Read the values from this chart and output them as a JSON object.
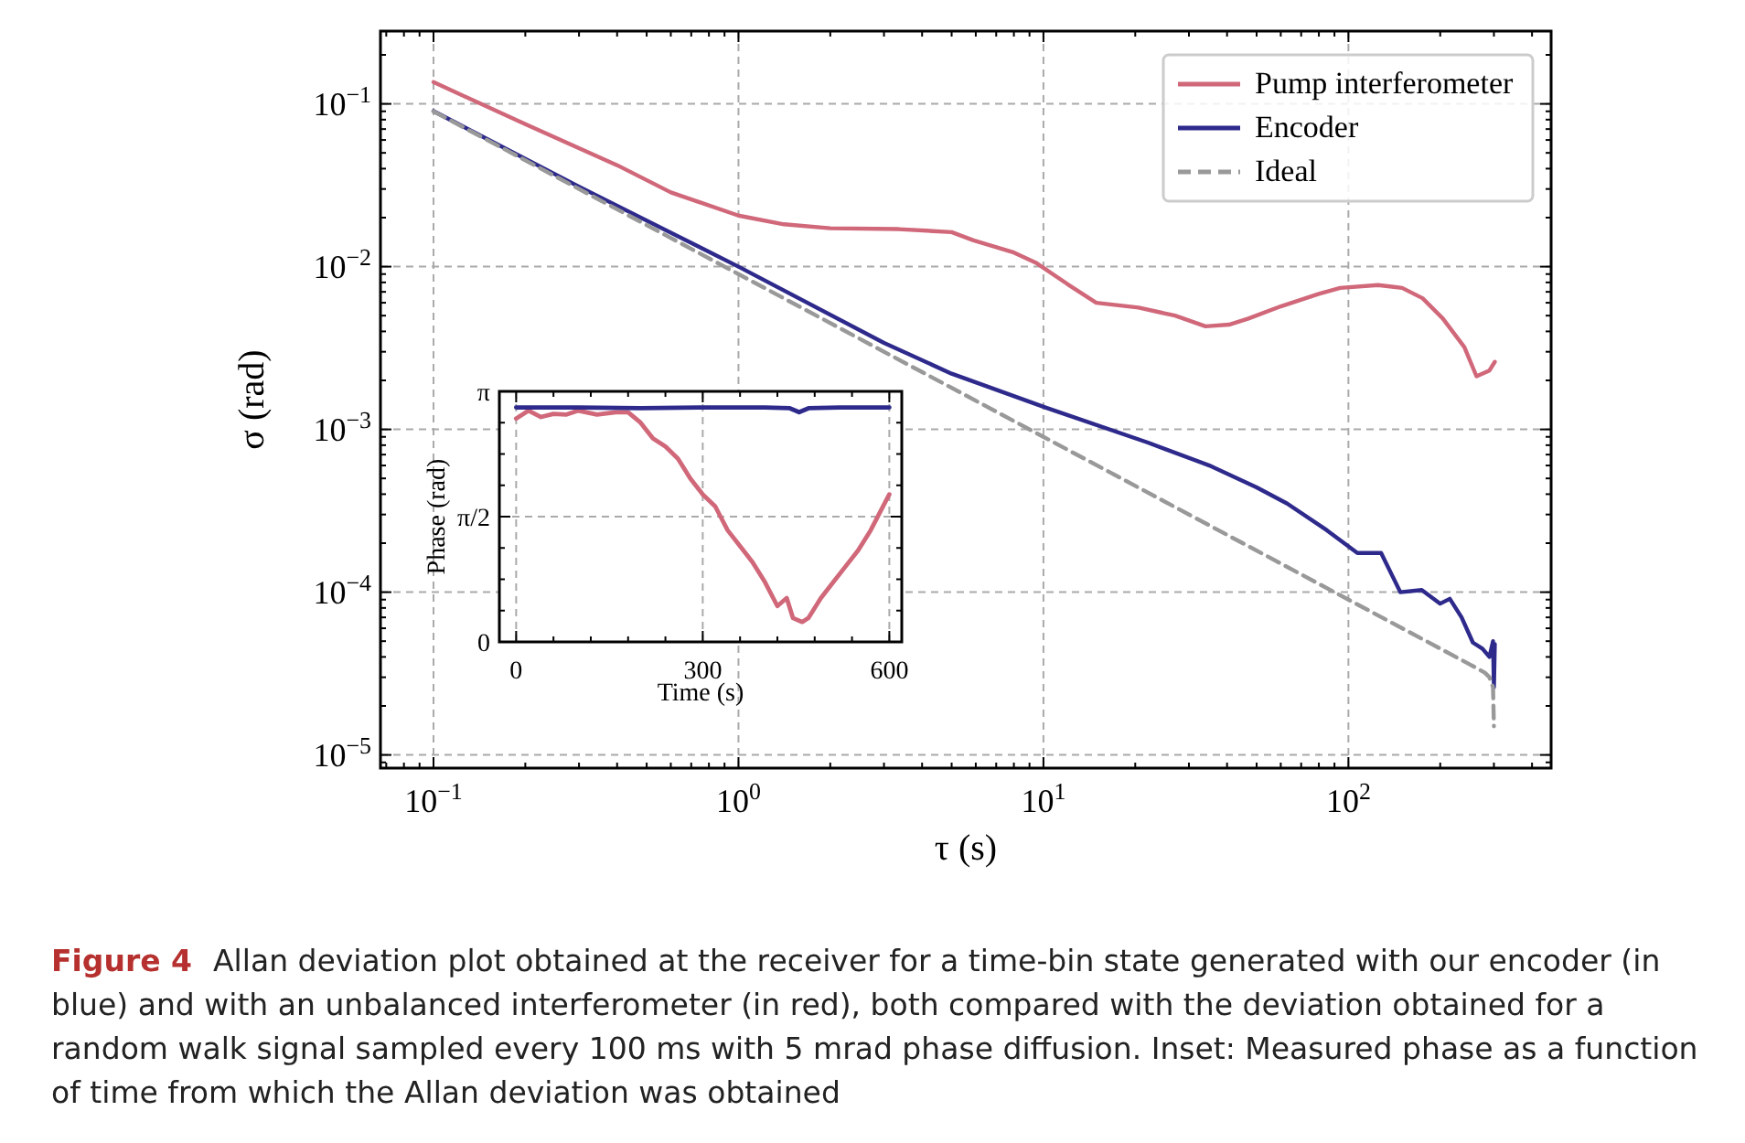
{
  "chart_data": [
    {
      "type": "line",
      "xlabel": "τ (s)",
      "ylabel": "σ (rad)",
      "log": "xy",
      "grid": true,
      "legend": "top right",
      "xlim": [
        0.067,
        462
      ],
      "ylim": [
        8.3e-06,
        0.28
      ],
      "xticks": [
        {
          "value": 0.1,
          "label": "10$^{−1}$"
        },
        {
          "value": 1,
          "label": "10$^{0}$"
        },
        {
          "value": 10,
          "label": "10$^{1}$"
        },
        {
          "value": 100,
          "label": "10$^{2}$"
        },
        {
          "value": 0.07,
          "label": null
        },
        {
          "value": 0.08,
          "label": null
        },
        {
          "value": 0.09,
          "label": null
        },
        {
          "value": 0.2,
          "label": null
        },
        {
          "value": 0.3,
          "label": null
        },
        {
          "value": 0.4,
          "label": null
        },
        {
          "value": 0.5,
          "label": null
        },
        {
          "value": 0.6,
          "label": null
        },
        {
          "value": 0.7,
          "label": null
        },
        {
          "value": 0.8,
          "label": null
        },
        {
          "value": 0.9,
          "label": null
        },
        {
          "value": 2,
          "label": null
        },
        {
          "value": 3,
          "label": null
        },
        {
          "value": 4,
          "label": null
        },
        {
          "value": 5,
          "label": null
        },
        {
          "value": 6,
          "label": null
        },
        {
          "value": 7,
          "label": null
        },
        {
          "value": 8,
          "label": null
        },
        {
          "value": 9,
          "label": null
        },
        {
          "value": 20,
          "label": null
        },
        {
          "value": 30,
          "label": null
        },
        {
          "value": 40,
          "label": null
        },
        {
          "value": 50,
          "label": null
        },
        {
          "value": 60,
          "label": null
        },
        {
          "value": 70,
          "label": null
        },
        {
          "value": 80,
          "label": null
        },
        {
          "value": 90,
          "label": null
        },
        {
          "value": 200,
          "label": null
        },
        {
          "value": 300,
          "label": null
        },
        {
          "value": 400,
          "label": null
        }
      ],
      "yticks": [
        {
          "value": 1e-05,
          "label": "10$^{−5}$"
        },
        {
          "value": 0.0001,
          "label": "10$^{−4}$"
        },
        {
          "value": 0.001,
          "label": "10$^{−3}$"
        },
        {
          "value": 0.01,
          "label": "10$^{−2}$"
        },
        {
          "value": 0.1,
          "label": "10$^{−1}$"
        },
        {
          "value": 9e-06,
          "label": null
        },
        {
          "value": 2e-05,
          "label": null
        },
        {
          "value": 3e-05,
          "label": null
        },
        {
          "value": 4e-05,
          "label": null
        },
        {
          "value": 5e-05,
          "label": null
        },
        {
          "value": 6e-05,
          "label": null
        },
        {
          "value": 7e-05,
          "label": null
        },
        {
          "value": 8e-05,
          "label": null
        },
        {
          "value": 9e-05,
          "label": null
        },
        {
          "value": 0.0002,
          "label": null
        },
        {
          "value": 0.0003,
          "label": null
        },
        {
          "value": 0.0004,
          "label": null
        },
        {
          "value": 0.0005,
          "label": null
        },
        {
          "value": 0.0006,
          "label": null
        },
        {
          "value": 0.0007,
          "label": null
        },
        {
          "value": 0.0008,
          "label": null
        },
        {
          "value": 0.0009,
          "label": null
        },
        {
          "value": 0.002,
          "label": null
        },
        {
          "value": 0.003,
          "label": null
        },
        {
          "value": 0.004,
          "label": null
        },
        {
          "value": 0.005,
          "label": null
        },
        {
          "value": 0.006,
          "label": null
        },
        {
          "value": 0.007,
          "label": null
        },
        {
          "value": 0.008,
          "label": null
        },
        {
          "value": 0.009,
          "label": null
        },
        {
          "value": 0.02,
          "label": null
        },
        {
          "value": 0.03,
          "label": null
        },
        {
          "value": 0.04,
          "label": null
        },
        {
          "value": 0.05,
          "label": null
        },
        {
          "value": 0.06,
          "label": null
        },
        {
          "value": 0.07,
          "label": null
        },
        {
          "value": 0.08,
          "label": null
        },
        {
          "value": 0.09,
          "label": null
        },
        {
          "value": 0.2,
          "label": null
        }
      ],
      "annotations": [
        "Figure 4",
        "Allan deviation plot obtained at the receiver for a time-bin state generated with our encoder (in blue) and with an unbalanced interferometer (in red), both compared with the deviation obtained for a random walk signal sampled every 100 ms with 5 mrad phase diffusion. Inset: Measured phase as a function of time from which the Allan deviation was obtained"
      ],
      "series": [
        {
          "name": "Pump interferometer",
          "color": "#d0687a",
          "line_style": "solid",
          "x": [
            0.1,
            0.2,
            0.4,
            0.6,
            1,
            1.41,
            2,
            3.35,
            5,
            5.9,
            8,
            9.5,
            12,
            14.9,
            20.5,
            27,
            34,
            40.6,
            47,
            60,
            80,
            94,
            125,
            150,
            175,
            204,
            240,
            263,
            290,
            302
          ],
          "values": [
            0.136,
            0.075,
            0.042,
            0.0286,
            0.0206,
            0.0182,
            0.0172,
            0.017,
            0.0163,
            0.0145,
            0.0122,
            0.0105,
            0.0078,
            0.006,
            0.0056,
            0.005,
            0.0043,
            0.0044,
            0.0048,
            0.0057,
            0.0068,
            0.0074,
            0.0077,
            0.0074,
            0.0064,
            0.0048,
            0.0032,
            0.00212,
            0.0023,
            0.0026
          ]
        },
        {
          "name": "Encoder",
          "color": "#2e2a8c",
          "line_style": "solid",
          "x": [
            0.1,
            0.3,
            1,
            3,
            5,
            10.2,
            22,
            35,
            50,
            63,
            85,
            107,
            128,
            148,
            174,
            200,
            215,
            235,
            256,
            275,
            290,
            298,
            300,
            302
          ],
          "values": [
            0.0902,
            0.031,
            0.01,
            0.0034,
            0.0022,
            0.00136,
            0.00083,
            0.0006,
            0.00044,
            0.00035,
            0.00024,
            0.000174,
            0.000174,
            0.0001,
            0.000103,
            8.5e-05,
            9.1e-05,
            7e-05,
            4.9e-05,
            4.5e-05,
            4e-05,
            5e-05,
            2.6e-05,
            4.8e-05
          ]
        },
        {
          "name": "Ideal",
          "color": "#999999",
          "line_style": "dashed",
          "x": [
            0.1,
            1,
            10,
            100,
            200,
            250,
            280,
            290,
            298,
            300
          ],
          "values": [
            0.09,
            0.009,
            0.0009,
            9e-05,
            4.5e-05,
            3.6e-05,
            3.2e-05,
            3e-05,
            2.6e-05,
            1.5e-05
          ]
        }
      ]
    },
    {
      "type": "line",
      "xlabel": "Time (s)",
      "ylabel": "Phase (rad)",
      "grid": true,
      "legend": false,
      "xlim": [
        -27,
        620
      ],
      "ylim": [
        0,
        3.1416
      ],
      "xticks": [
        0,
        300,
        600,
        {
          "value": 60,
          "label": null
        },
        {
          "value": 120,
          "label": null
        },
        {
          "value": 180,
          "label": null
        },
        {
          "value": 240,
          "label": null
        },
        {
          "value": 360,
          "label": null
        },
        {
          "value": 420,
          "label": null
        },
        {
          "value": 480,
          "label": null
        },
        {
          "value": 540,
          "label": null
        }
      ],
      "yticks": [
        {
          "value": 0,
          "label": "0"
        },
        {
          "value": 1.5708,
          "label": "π/2"
        },
        {
          "value": 3.1416,
          "label": "π"
        },
        {
          "value": 0.3927,
          "label": null
        },
        {
          "value": 0.7854,
          "label": null
        },
        {
          "value": 1.1781,
          "label": null
        },
        {
          "value": 1.9635,
          "label": null
        },
        {
          "value": 2.3562,
          "label": null
        },
        {
          "value": 2.7489,
          "label": null
        }
      ],
      "series": [
        {
          "color": "#d0687a",
          "x": [
            0,
            20,
            40,
            60,
            80,
            100,
            130,
            160,
            180,
            200,
            220,
            240,
            260,
            280,
            300,
            320,
            340,
            360,
            380,
            400,
            420,
            435,
            445,
            460,
            470,
            490,
            510,
            530,
            550,
            570,
            590,
            600
          ],
          "values": [
            2.8,
            2.9,
            2.82,
            2.86,
            2.85,
            2.9,
            2.85,
            2.88,
            2.88,
            2.75,
            2.55,
            2.45,
            2.3,
            2.05,
            1.85,
            1.7,
            1.4,
            1.2,
            1.0,
            0.75,
            0.45,
            0.55,
            0.3,
            0.25,
            0.3,
            0.55,
            0.75,
            0.95,
            1.15,
            1.4,
            1.7,
            1.85
          ]
        },
        {
          "color": "#2e2a8c",
          "x": [
            0,
            100,
            200,
            300,
            400,
            440,
            455,
            470,
            520,
            600
          ],
          "values": [
            2.94,
            2.94,
            2.93,
            2.94,
            2.94,
            2.93,
            2.88,
            2.93,
            2.94,
            2.94
          ]
        }
      ]
    }
  ]
}
